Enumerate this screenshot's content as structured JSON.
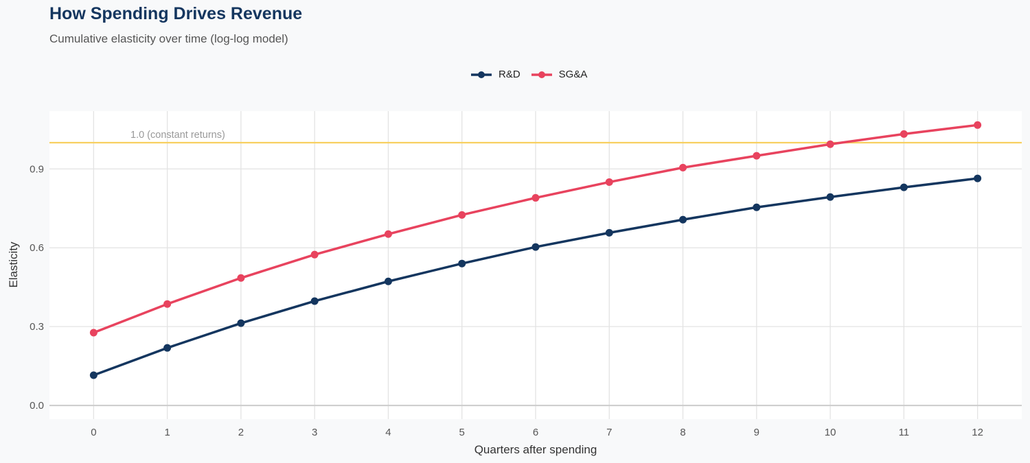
{
  "chart_data": {
    "type": "line",
    "title": "How Spending Drives Revenue",
    "subtitle": "Cumulative elasticity over time (log-log model)",
    "xlabel": "Quarters after spending",
    "ylabel": "Elasticity",
    "x": [
      0,
      1,
      2,
      3,
      4,
      5,
      6,
      7,
      8,
      9,
      10,
      11,
      12
    ],
    "xticks": [
      "0",
      "1",
      "2",
      "3",
      "4",
      "5",
      "6",
      "7",
      "8",
      "9",
      "10",
      "11",
      "12"
    ],
    "yticks": [
      "0.0",
      "0.3",
      "0.6",
      "0.9"
    ],
    "ytick_values": [
      0,
      0.3,
      0.6,
      0.9
    ],
    "xlim": [
      -0.6,
      12.6
    ],
    "ylim": [
      -0.052,
      1.12
    ],
    "grid": true,
    "legend_position": "top",
    "series": [
      {
        "name": "R&D",
        "color": "#14365f",
        "values": [
          0.115,
          0.219,
          0.313,
          0.397,
          0.472,
          0.54,
          0.603,
          0.657,
          0.707,
          0.754,
          0.793,
          0.83,
          0.864
        ]
      },
      {
        "name": "SG&A",
        "color": "#e8435e",
        "values": [
          0.277,
          0.386,
          0.485,
          0.574,
          0.652,
          0.725,
          0.79,
          0.85,
          0.905,
          0.95,
          0.994,
          1.033,
          1.067
        ]
      }
    ],
    "reference_line": {
      "y": 1.0,
      "label": "1.0 (constant returns)",
      "color": "#f7d060"
    }
  }
}
